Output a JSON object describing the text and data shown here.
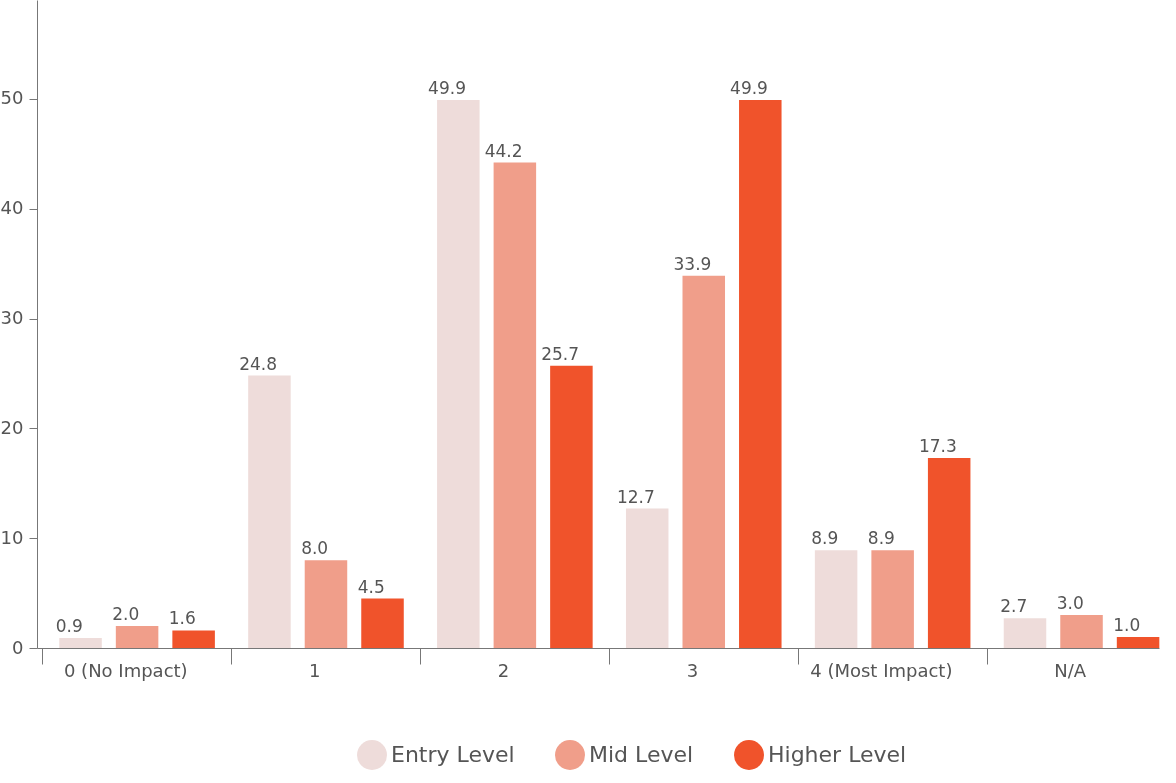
{
  "chart_data": {
    "type": "bar",
    "categories": [
      "0 (No Impact)",
      "1",
      "2",
      "3",
      "4 (Most Impact)",
      "N/A"
    ],
    "series": [
      {
        "name": "Entry Level",
        "color": "#eedcda",
        "values": [
          0.9,
          24.8,
          49.9,
          12.7,
          8.9,
          2.7
        ],
        "value_labels": [
          "0.9",
          "24.8",
          "49.9",
          "12.7",
          "8.9",
          "2.7"
        ]
      },
      {
        "name": "Mid Level",
        "color": "#f09e8a",
        "values": [
          2.0,
          8.0,
          44.2,
          33.9,
          8.9,
          3.0
        ],
        "value_labels": [
          "2.0",
          "8.0",
          "44.2",
          "33.9",
          "8.9",
          "3.0"
        ]
      },
      {
        "name": "Higher Level",
        "color": "#f0532b",
        "values": [
          1.6,
          4.5,
          25.7,
          49.9,
          17.3,
          1.0
        ],
        "value_labels": [
          "1.6",
          "4.5",
          "25.7",
          "49.9",
          "17.3",
          "1.0"
        ]
      }
    ],
    "ylim": [
      0,
      59
    ],
    "yticks": [
      0,
      10,
      20,
      30,
      40,
      50
    ],
    "grid": false,
    "legend": "bottom"
  }
}
